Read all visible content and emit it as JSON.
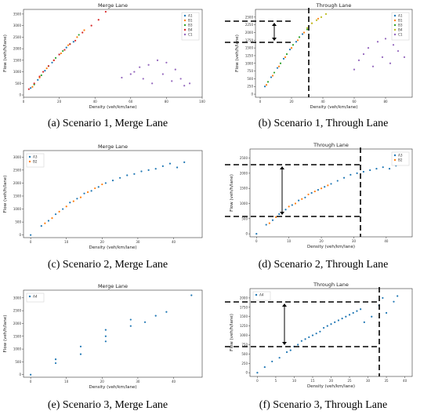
{
  "chart_data": [
    {
      "type": "scatter",
      "id": "a",
      "caption": "(a) Scenario 1, Merge Lane",
      "title": "Merge Lane",
      "xlabel": "Density (veh/km/lane)",
      "ylabel": "Flow (veh/h/lane)",
      "xlim": [
        0,
        100
      ],
      "ylim": [
        -100,
        3700
      ],
      "xticks": [
        0,
        20,
        40,
        60,
        80,
        100
      ],
      "yticks": [
        0,
        500,
        1000,
        1500,
        2000,
        2500,
        3000,
        3500
      ],
      "legend": "top-right",
      "series": [
        {
          "name": "A1",
          "color": "#1f77b4",
          "points": [
            [
              4,
              300
            ],
            [
              8,
              650
            ],
            [
              12,
              1050
            ],
            [
              16,
              1400
            ],
            [
              20,
              1750
            ],
            [
              24,
              2050
            ],
            [
              28,
              2300
            ]
          ]
        },
        {
          "name": "B1",
          "color": "#ff7f0e",
          "points": [
            [
              5,
              350
            ],
            [
              9,
              750
            ],
            [
              13,
              1150
            ],
            [
              17,
              1500
            ],
            [
              21,
              1800
            ],
            [
              25,
              2150
            ],
            [
              30,
              2500
            ],
            [
              34,
              2800
            ]
          ]
        },
        {
          "name": "B3",
          "color": "#2ca02c",
          "points": [
            [
              6,
              450
            ],
            [
              10,
              850
            ],
            [
              14,
              1250
            ],
            [
              18,
              1600
            ],
            [
              22,
              1900
            ],
            [
              26,
              2200
            ],
            [
              31,
              2600
            ]
          ]
        },
        {
          "name": "B4",
          "color": "#d62728",
          "points": [
            [
              3,
              250
            ],
            [
              6,
              500
            ],
            [
              9,
              800
            ],
            [
              11,
              1000
            ],
            [
              14,
              1250
            ],
            [
              17,
              1500
            ],
            [
              20,
              1750
            ],
            [
              23,
              1950
            ],
            [
              26,
              2200
            ],
            [
              29,
              2350
            ],
            [
              33,
              2700
            ],
            [
              38,
              3000
            ],
            [
              42,
              3250
            ],
            [
              46,
              3600
            ]
          ]
        },
        {
          "name": "C1",
          "color": "#9467bd",
          "points": [
            [
              55,
              750
            ],
            [
              60,
              900
            ],
            [
              62,
              1000
            ],
            [
              65,
              1200
            ],
            [
              67,
              700
            ],
            [
              70,
              1300
            ],
            [
              72,
              500
            ],
            [
              75,
              1500
            ],
            [
              78,
              900
            ],
            [
              80,
              1400
            ],
            [
              83,
              600
            ],
            [
              85,
              1100
            ],
            [
              88,
              700
            ],
            [
              90,
              400
            ],
            [
              93,
              500
            ]
          ]
        }
      ]
    },
    {
      "type": "scatter",
      "id": "b",
      "caption": "(b) Scenario 1, Through Lane",
      "title": "Through Lane",
      "xlabel": "Density (veh/km/lane)",
      "ylabel": "Flow (veh/h/lane)",
      "xlim": [
        -3,
        97
      ],
      "ylim": [
        -100,
        2750
      ],
      "xticks": [
        0,
        20,
        40,
        60,
        80
      ],
      "yticks": [
        0,
        250,
        500,
        750,
        1000,
        1250,
        1500,
        1750,
        2000,
        2250,
        2500
      ],
      "legend": "top-right",
      "series": [
        {
          "name": "A1",
          "color": "#1f77b4",
          "points": [
            [
              3,
              250
            ],
            [
              7,
              550
            ],
            [
              11,
              850
            ],
            [
              15,
              1150
            ],
            [
              19,
              1450
            ],
            [
              23,
              1700
            ],
            [
              27,
              1950
            ]
          ]
        },
        {
          "name": "B1",
          "color": "#ff7f0e",
          "points": [
            [
              4,
              300
            ],
            [
              8,
              600
            ],
            [
              12,
              900
            ],
            [
              16,
              1200
            ],
            [
              20,
              1500
            ],
            [
              24,
              1750
            ],
            [
              28,
              2000
            ],
            [
              33,
              2300
            ],
            [
              37,
              2450
            ]
          ]
        },
        {
          "name": "B3",
          "color": "#2ca02c",
          "points": [
            [
              5,
              400
            ],
            [
              9,
              700
            ],
            [
              13,
              1000
            ],
            [
              17,
              1300
            ],
            [
              21,
              1600
            ],
            [
              25,
              1850
            ],
            [
              30,
              2100
            ]
          ]
        },
        {
          "name": "B4",
          "color": "#bcbd22",
          "points": [
            [
              30,
              2150
            ],
            [
              33,
              2300
            ],
            [
              36,
              2400
            ],
            [
              39,
              2500
            ],
            [
              42,
              2600
            ]
          ]
        },
        {
          "name": "C1",
          "color": "#9467bd",
          "points": [
            [
              60,
              800
            ],
            [
              63,
              1100
            ],
            [
              66,
              1300
            ],
            [
              69,
              1500
            ],
            [
              72,
              900
            ],
            [
              75,
              1700
            ],
            [
              78,
              1200
            ],
            [
              80,
              1800
            ],
            [
              83,
              1000
            ],
            [
              85,
              1600
            ],
            [
              88,
              1400
            ],
            [
              90,
              1900
            ],
            [
              92,
              1200
            ]
          ]
        }
      ]
    },
    {
      "type": "scatter",
      "id": "c",
      "caption": "(c) Scenario 2, Merge Lane",
      "title": "Merge Lane",
      "xlabel": "Density (veh/km/lane)",
      "ylabel": "Flow (veh/h/lane)",
      "xlim": [
        -2,
        48
      ],
      "ylim": [
        -100,
        3250
      ],
      "xticks": [
        0,
        10,
        20,
        30,
        40
      ],
      "yticks": [
        0,
        500,
        1000,
        1500,
        2000,
        2500,
        3000
      ],
      "legend": "top-left",
      "series": [
        {
          "name": "A3",
          "color": "#1f77b4",
          "points": [
            [
              0,
              0
            ],
            [
              3,
              350
            ],
            [
              5,
              550
            ],
            [
              7,
              800
            ],
            [
              9,
              1000
            ],
            [
              11,
              1250
            ],
            [
              13,
              1400
            ],
            [
              15,
              1600
            ],
            [
              17,
              1700
            ],
            [
              19,
              1850
            ],
            [
              21,
              2000
            ],
            [
              23,
              2100
            ],
            [
              25,
              2200
            ],
            [
              27,
              2300
            ],
            [
              29,
              2350
            ],
            [
              31,
              2450
            ],
            [
              33,
              2500
            ],
            [
              35,
              2550
            ],
            [
              37,
              2650
            ],
            [
              39,
              2750
            ],
            [
              41,
              2600
            ],
            [
              43,
              2800
            ]
          ]
        },
        {
          "name": "B2",
          "color": "#ff7f0e",
          "points": [
            [
              4,
              450
            ],
            [
              6,
              650
            ],
            [
              8,
              900
            ],
            [
              10,
              1100
            ],
            [
              12,
              1300
            ],
            [
              14,
              1450
            ],
            [
              16,
              1650
            ],
            [
              18,
              1800
            ],
            [
              20,
              1950
            ]
          ]
        }
      ]
    },
    {
      "type": "scatter",
      "id": "d",
      "caption": "(d) Scenario 2, Through Lane",
      "title": "Through Lane",
      "xlabel": "Density (veh/km/lane)",
      "ylabel": "Flow (veh/h/lane)",
      "xlim": [
        -2,
        48
      ],
      "ylim": [
        -100,
        2800
      ],
      "xticks": [
        0,
        10,
        20,
        30,
        40
      ],
      "yticks": [
        0,
        500,
        1000,
        1500,
        2000,
        2500
      ],
      "legend": "top-right",
      "series": [
        {
          "name": "A3",
          "color": "#1f77b4",
          "points": [
            [
              0,
              0
            ],
            [
              3,
              300
            ],
            [
              5,
              450
            ],
            [
              7,
              650
            ],
            [
              9,
              800
            ],
            [
              11,
              950
            ],
            [
              13,
              1100
            ],
            [
              15,
              1200
            ],
            [
              17,
              1350
            ],
            [
              19,
              1450
            ],
            [
              21,
              1550
            ],
            [
              23,
              1650
            ],
            [
              25,
              1750
            ],
            [
              27,
              1850
            ],
            [
              29,
              1950
            ],
            [
              31,
              2000
            ],
            [
              33,
              2050
            ],
            [
              35,
              2100
            ],
            [
              37,
              2150
            ],
            [
              39,
              2200
            ],
            [
              41,
              2150
            ],
            [
              43,
              2250
            ]
          ]
        },
        {
          "name": "B2",
          "color": "#ff7f0e",
          "points": [
            [
              4,
              350
            ],
            [
              6,
              550
            ],
            [
              8,
              700
            ],
            [
              10,
              900
            ],
            [
              12,
              1000
            ],
            [
              14,
              1150
            ],
            [
              16,
              1300
            ],
            [
              18,
              1400
            ],
            [
              20,
              1500
            ],
            [
              22,
              1600
            ]
          ]
        }
      ]
    },
    {
      "type": "scatter",
      "id": "e",
      "caption": "(e) Scenario 3, Merge Lane",
      "title": "Merge Lane",
      "xlabel": "Density (veh/km/lane)",
      "ylabel": "Flow (veh/h/lane)",
      "xlim": [
        -2,
        48
      ],
      "ylim": [
        -100,
        3300
      ],
      "xticks": [
        0,
        10,
        20,
        30,
        40
      ],
      "yticks": [
        0,
        500,
        1000,
        1500,
        2000,
        2500,
        3000
      ],
      "legend": "top-left",
      "series": [
        {
          "name": "A4",
          "color": "#1f77b4",
          "points": [
            [
              0,
              0
            ],
            [
              7,
              450
            ],
            [
              7,
              600
            ],
            [
              14,
              800
            ],
            [
              14,
              1100
            ],
            [
              21,
              1300
            ],
            [
              21,
              1500
            ],
            [
              21,
              1750
            ],
            [
              28,
              1900
            ],
            [
              28,
              2150
            ],
            [
              32,
              2050
            ],
            [
              35,
              2300
            ],
            [
              38,
              2450
            ],
            [
              45,
              3100
            ]
          ]
        }
      ]
    },
    {
      "type": "scatter",
      "id": "f",
      "caption": "(f) Scenario 3, Through Lane",
      "title": "Through Lane",
      "xlabel": "Density (veh/km/lane)",
      "ylabel": "Flow (veh/h/lane)",
      "xlim": [
        -2,
        42
      ],
      "ylim": [
        -100,
        2250
      ],
      "xticks": [
        0,
        5,
        10,
        15,
        20,
        25,
        30,
        35,
        40
      ],
      "yticks": [
        0,
        250,
        500,
        750,
        1000,
        1250,
        1500,
        1750,
        2000
      ],
      "legend": "top-left",
      "series": [
        {
          "name": "A4",
          "color": "#1f77b4",
          "points": [
            [
              0,
              0
            ],
            [
              2,
              150
            ],
            [
              4,
              300
            ],
            [
              6,
              400
            ],
            [
              8,
              550
            ],
            [
              9,
              600
            ],
            [
              10,
              700
            ],
            [
              11,
              750
            ],
            [
              12,
              850
            ],
            [
              13,
              900
            ],
            [
              14,
              950
            ],
            [
              15,
              1000
            ],
            [
              16,
              1050
            ],
            [
              17,
              1100
            ],
            [
              18,
              1200
            ],
            [
              19,
              1250
            ],
            [
              20,
              1300
            ],
            [
              21,
              1350
            ],
            [
              22,
              1400
            ],
            [
              23,
              1450
            ],
            [
              24,
              1500
            ],
            [
              25,
              1550
            ],
            [
              26,
              1600
            ],
            [
              27,
              1650
            ],
            [
              28,
              1700
            ],
            [
              29,
              1350
            ],
            [
              31,
              1500
            ],
            [
              33,
              1800
            ],
            [
              34,
              2000
            ],
            [
              35,
              1600
            ],
            [
              37,
              1900
            ],
            [
              38,
              2050
            ]
          ]
        }
      ]
    }
  ]
}
